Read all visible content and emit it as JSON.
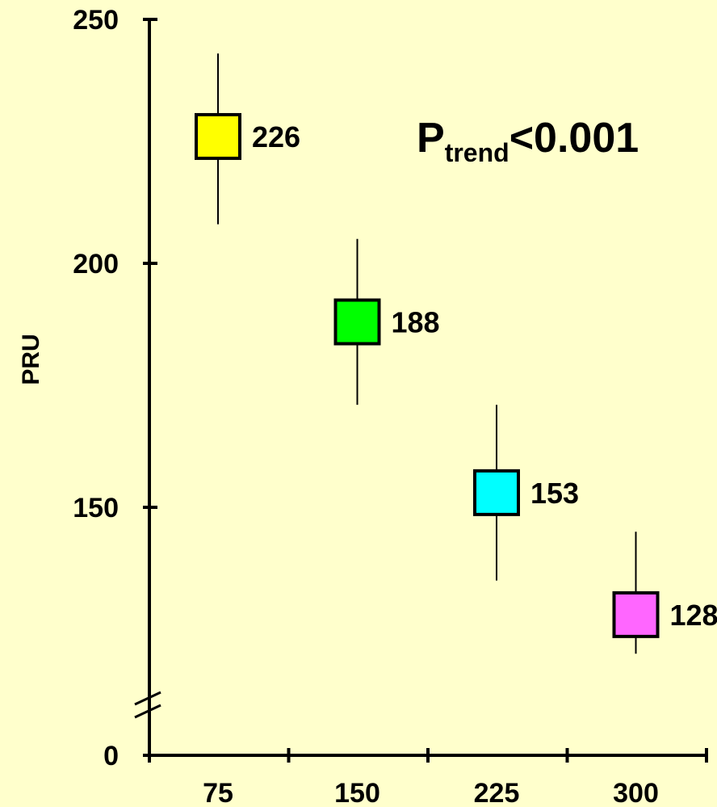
{
  "chart_data": {
    "type": "scatter",
    "ylabel": "PRU",
    "xlabel": "",
    "title": "",
    "categories": [
      "75",
      "150",
      "225",
      "300"
    ],
    "values": [
      226,
      188,
      153,
      128
    ],
    "error_low": [
      208,
      171,
      135,
      120
    ],
    "error_high": [
      243,
      205,
      171,
      145
    ],
    "colors": [
      "#FFFF00",
      "#00FF00",
      "#00FFFF",
      "#FF66FF"
    ],
    "labels": [
      "226",
      "188",
      "153",
      "128"
    ],
    "y_ticks": [
      "0",
      "150",
      "200",
      "250"
    ],
    "ylim": [
      0,
      250
    ],
    "axis_break": "between 0 and 150",
    "annotation": {
      "main": "P",
      "subscript": "trend",
      "rest": "<0.001"
    },
    "grid": false,
    "legend": "none"
  }
}
